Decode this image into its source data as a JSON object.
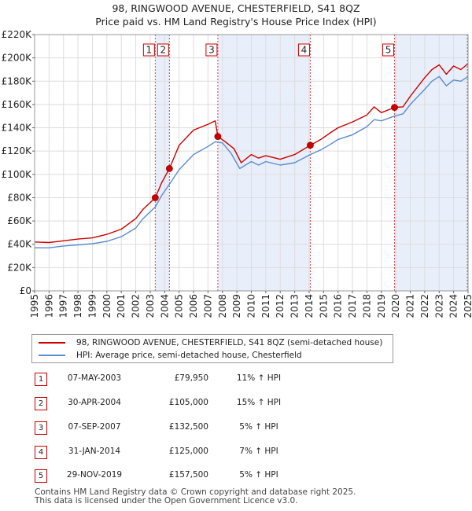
{
  "title_line1": "98, RINGWOOD AVENUE, CHESTERFIELD, S41 8QZ",
  "title_line2": "Price paid vs. HM Land Registry's House Price Index (HPI)",
  "colors": {
    "property": "#cc0000",
    "hpi": "#5b8ccf",
    "shade": "#e8eefa",
    "vline": "#dd4444"
  },
  "chart_data": {
    "type": "line",
    "title": "Price paid vs. HM Land Registry's House Price Index (HPI)",
    "xlabel": "",
    "ylabel": "",
    "xlim": [
      1995,
      2025
    ],
    "ylim": [
      0,
      220000
    ],
    "y_ticks": [
      0,
      20000,
      40000,
      60000,
      80000,
      100000,
      120000,
      140000,
      160000,
      180000,
      200000,
      220000
    ],
    "y_tick_labels": [
      "£0",
      "£20K",
      "£40K",
      "£60K",
      "£80K",
      "£100K",
      "£120K",
      "£140K",
      "£160K",
      "£180K",
      "£200K",
      "£220K"
    ],
    "x_ticks": [
      1995,
      1996,
      1997,
      1998,
      1999,
      2000,
      2001,
      2002,
      2003,
      2004,
      2005,
      2006,
      2007,
      2008,
      2009,
      2010,
      2011,
      2012,
      2013,
      2014,
      2015,
      2016,
      2017,
      2018,
      2019,
      2020,
      2021,
      2022,
      2023,
      2024,
      2025
    ],
    "x_tick_labels": [
      "1995",
      "1996",
      "1997",
      "1998",
      "1999",
      "2000",
      "2001",
      "2002",
      "2003",
      "2004",
      "2005",
      "2006",
      "2007",
      "2008",
      "2009",
      "2010",
      "2011",
      "2012",
      "2013",
      "2014",
      "2015",
      "2016",
      "2017",
      "2018",
      "2019",
      "2020",
      "2021",
      "2022",
      "2023",
      "2024",
      "2025"
    ],
    "grid": true,
    "legend_position": "below",
    "series": [
      {
        "name": "98, RINGWOOD AVENUE, CHESTERFIELD, S41 8QZ (semi-detached house)",
        "x": [
          1995.0,
          1996.0,
          1997.0,
          1998.0,
          1999.0,
          2000.0,
          2001.0,
          2002.0,
          2002.5,
          2003.35,
          2003.8,
          2004.33,
          2005.0,
          2006.0,
          2007.0,
          2007.5,
          2007.68,
          2008.2,
          2008.8,
          2009.3,
          2010.0,
          2010.5,
          2011.0,
          2012.0,
          2013.0,
          2014.08,
          2014.8,
          2015.5,
          2016.0,
          2017.0,
          2018.0,
          2018.5,
          2019.0,
          2019.91,
          2020.5,
          2021.0,
          2022.0,
          2022.5,
          2023.0,
          2023.5,
          2024.0,
          2024.5,
          2025.0
        ],
        "values": [
          42000,
          41500,
          43000,
          44500,
          45500,
          48500,
          53000,
          62000,
          70000,
          79950,
          93000,
          105000,
          125000,
          138000,
          143000,
          146000,
          132500,
          128000,
          122000,
          110000,
          117000,
          114000,
          116000,
          113000,
          117000,
          125000,
          130000,
          136000,
          140000,
          145000,
          151000,
          158000,
          153000,
          157500,
          158000,
          167000,
          183000,
          190000,
          194000,
          186000,
          193000,
          190000,
          195000
        ]
      },
      {
        "name": "HPI: Average price, semi-detached house, Chesterfield",
        "x": [
          1995.0,
          1996.0,
          1997.0,
          1998.0,
          1999.0,
          2000.0,
          2001.0,
          2002.0,
          2002.5,
          2003.35,
          2003.8,
          2004.33,
          2005.0,
          2006.0,
          2007.0,
          2007.5,
          2008.0,
          2008.6,
          2009.2,
          2010.0,
          2010.5,
          2011.0,
          2012.0,
          2013.0,
          2014.08,
          2014.8,
          2015.5,
          2016.0,
          2017.0,
          2018.0,
          2018.5,
          2019.0,
          2019.91,
          2020.5,
          2021.0,
          2022.0,
          2022.5,
          2023.0,
          2023.5,
          2024.0,
          2024.5,
          2025.0
        ],
        "values": [
          37000,
          37000,
          38500,
          39500,
          40500,
          42500,
          46500,
          54000,
          62000,
          72000,
          82000,
          91500,
          104000,
          117000,
          124000,
          128000,
          127000,
          118000,
          105000,
          111000,
          108000,
          111000,
          108000,
          110000,
          117000,
          121000,
          126000,
          130000,
          134000,
          141000,
          147000,
          146000,
          150000,
          152000,
          160000,
          173000,
          180000,
          184000,
          176000,
          181000,
          180000,
          184000
        ]
      }
    ],
    "sales": [
      {
        "id": "1",
        "x": 2003.35,
        "price": 79950
      },
      {
        "id": "2",
        "x": 2004.33,
        "price": 105000
      },
      {
        "id": "3",
        "x": 2007.68,
        "price": 132500
      },
      {
        "id": "4",
        "x": 2014.08,
        "price": 125000
      },
      {
        "id": "5",
        "x": 2019.91,
        "price": 157500
      }
    ],
    "shaded_ranges": [
      [
        2003.35,
        2004.33
      ],
      [
        2007.68,
        2014.08
      ],
      [
        2019.91,
        2025.0
      ]
    ]
  },
  "legend": {
    "property_label": "98, RINGWOOD AVENUE, CHESTERFIELD, S41 8QZ (semi-detached house)",
    "hpi_label": "HPI: Average price, semi-detached house, Chesterfield"
  },
  "sales_table": [
    {
      "num": "1",
      "date": "07-MAY-2003",
      "price": "£79,950",
      "pct": "11% ↑ HPI"
    },
    {
      "num": "2",
      "date": "30-APR-2004",
      "price": "£105,000",
      "pct": "15% ↑ HPI"
    },
    {
      "num": "3",
      "date": "07-SEP-2007",
      "price": "£132,500",
      "pct": "5% ↑ HPI"
    },
    {
      "num": "4",
      "date": "31-JAN-2014",
      "price": "£125,000",
      "pct": "7% ↑ HPI"
    },
    {
      "num": "5",
      "date": "29-NOV-2019",
      "price": "£157,500",
      "pct": "5% ↑ HPI"
    }
  ],
  "footer": {
    "line1": "Contains HM Land Registry data © Crown copyright and database right 2025.",
    "line2": "This data is licensed under the Open Government Licence v3.0."
  }
}
